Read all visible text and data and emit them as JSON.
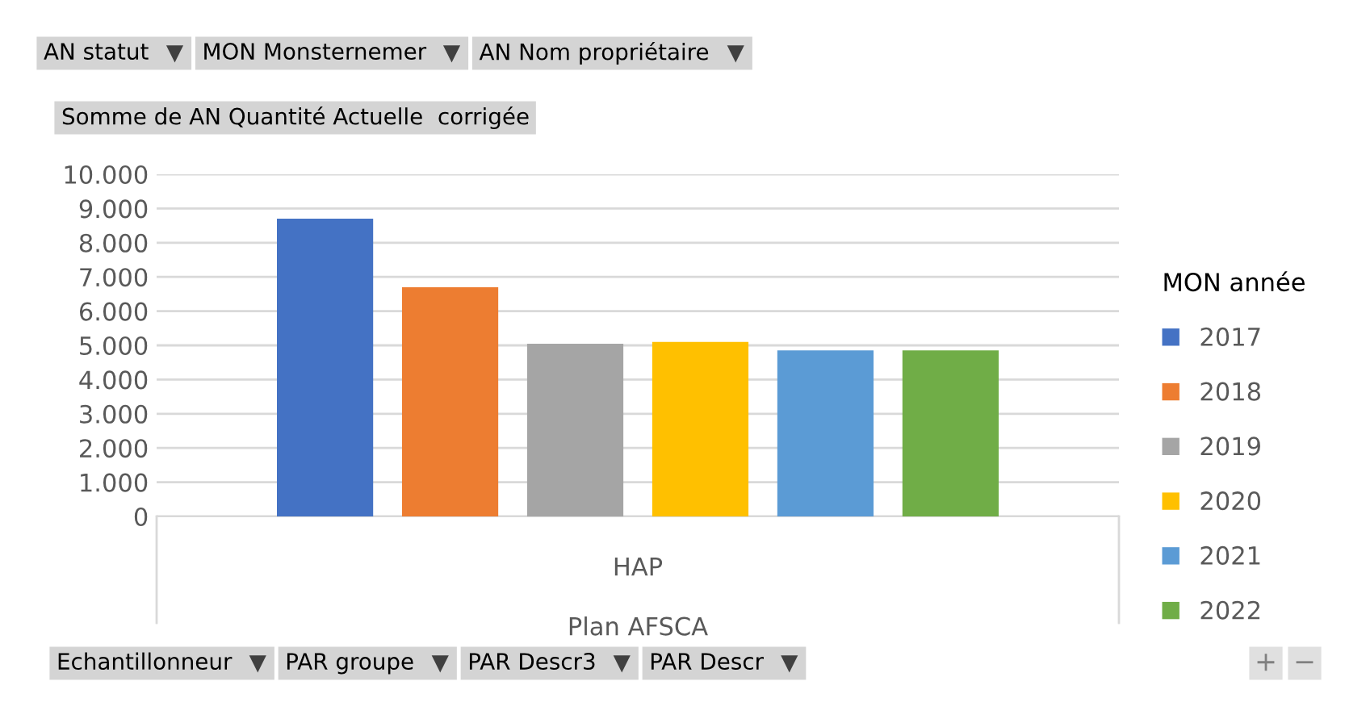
{
  "chart_data": {
    "type": "bar",
    "categories": [
      "HAP"
    ],
    "xlabel": "Plan AFSCA",
    "legend_title": "MON année",
    "series": [
      {
        "name": "2017",
        "color": "#4472c4",
        "values": [
          8700
        ]
      },
      {
        "name": "2018",
        "color": "#ed7d31",
        "values": [
          6700
        ]
      },
      {
        "name": "2019",
        "color": "#a5a5a5",
        "values": [
          5050
        ]
      },
      {
        "name": "2020",
        "color": "#ffc000",
        "values": [
          5100
        ]
      },
      {
        "name": "2021",
        "color": "#5b9bd5",
        "values": [
          4850
        ]
      },
      {
        "name": "2022",
        "color": "#70ad47",
        "values": [
          4850
        ]
      }
    ],
    "ylim": [
      0,
      10000
    ],
    "yticks": [
      0,
      {
        "value": 1000,
        "label": "1.000"
      },
      {
        "value": 2000,
        "label": "2.000"
      },
      {
        "value": 3000,
        "label": "3.000"
      },
      {
        "value": 4000,
        "label": "4.000"
      },
      {
        "value": 5000,
        "label": "5.000"
      },
      {
        "value": 6000,
        "label": "6.000"
      },
      {
        "value": 7000,
        "label": "7.000"
      },
      {
        "value": 8000,
        "label": "8.000"
      },
      {
        "value": 9000,
        "label": "9.000"
      },
      {
        "value": 10000,
        "label": "10.000"
      }
    ],
    "grid": "y",
    "legend": "right",
    "annotations": [
      "AN statut",
      "MON Monsternemer",
      "AN Nom propriétaire",
      "Somme de AN Quantité Actuelle  corrigée",
      "Echantillonneur",
      "PAR groupe",
      "PAR Descr3",
      "PAR Descr",
      "+",
      "−"
    ]
  }
}
